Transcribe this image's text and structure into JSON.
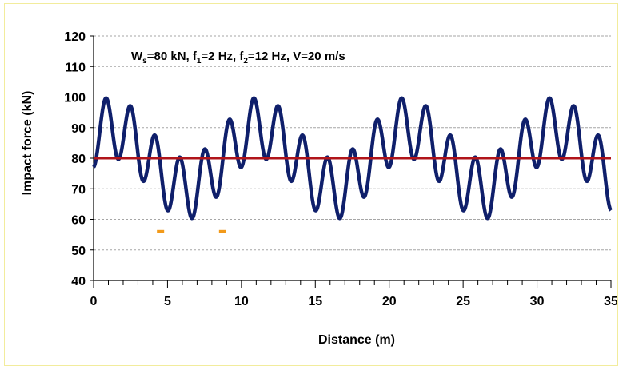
{
  "chart_data": {
    "type": "line",
    "annotation": {
      "parts": [
        {
          "text": "W",
          "sub": false
        },
        {
          "text": "s",
          "sub": true
        },
        {
          "text": "=80 kN, f",
          "sub": false
        },
        {
          "text": "1",
          "sub": true
        },
        {
          "text": "=2 Hz, f",
          "sub": false
        },
        {
          "text": "2",
          "sub": true
        },
        {
          "text": "=12 Hz, V=20 m/s",
          "sub": false
        }
      ]
    },
    "xlabel": "Distance (m)",
    "ylabel": "Impact force (kN)",
    "xlim": [
      0,
      35
    ],
    "ylim": [
      40,
      120
    ],
    "xticks": [
      0,
      5,
      10,
      15,
      20,
      25,
      30,
      35
    ],
    "yticks": [
      40,
      50,
      60,
      70,
      80,
      90,
      100,
      110,
      120
    ],
    "x_minor_step": 1,
    "grid": "horizontal dashed",
    "series": [
      {
        "kind": "curve",
        "color": "#0f1f6b",
        "model": {
          "static_load": 80,
          "speed": 20,
          "f1": 2,
          "f2": 12,
          "amp1": 10,
          "amp2": 10,
          "phase1_deg": 45,
          "phase2_deg": 270
        }
      },
      {
        "kind": "constant",
        "color": "#b0141a",
        "value": 80
      }
    ],
    "markers": [
      {
        "x": 4.5,
        "y": 56,
        "color": "#f29a1a"
      },
      {
        "x": 8.7,
        "y": 56,
        "color": "#f29a1a"
      }
    ]
  }
}
